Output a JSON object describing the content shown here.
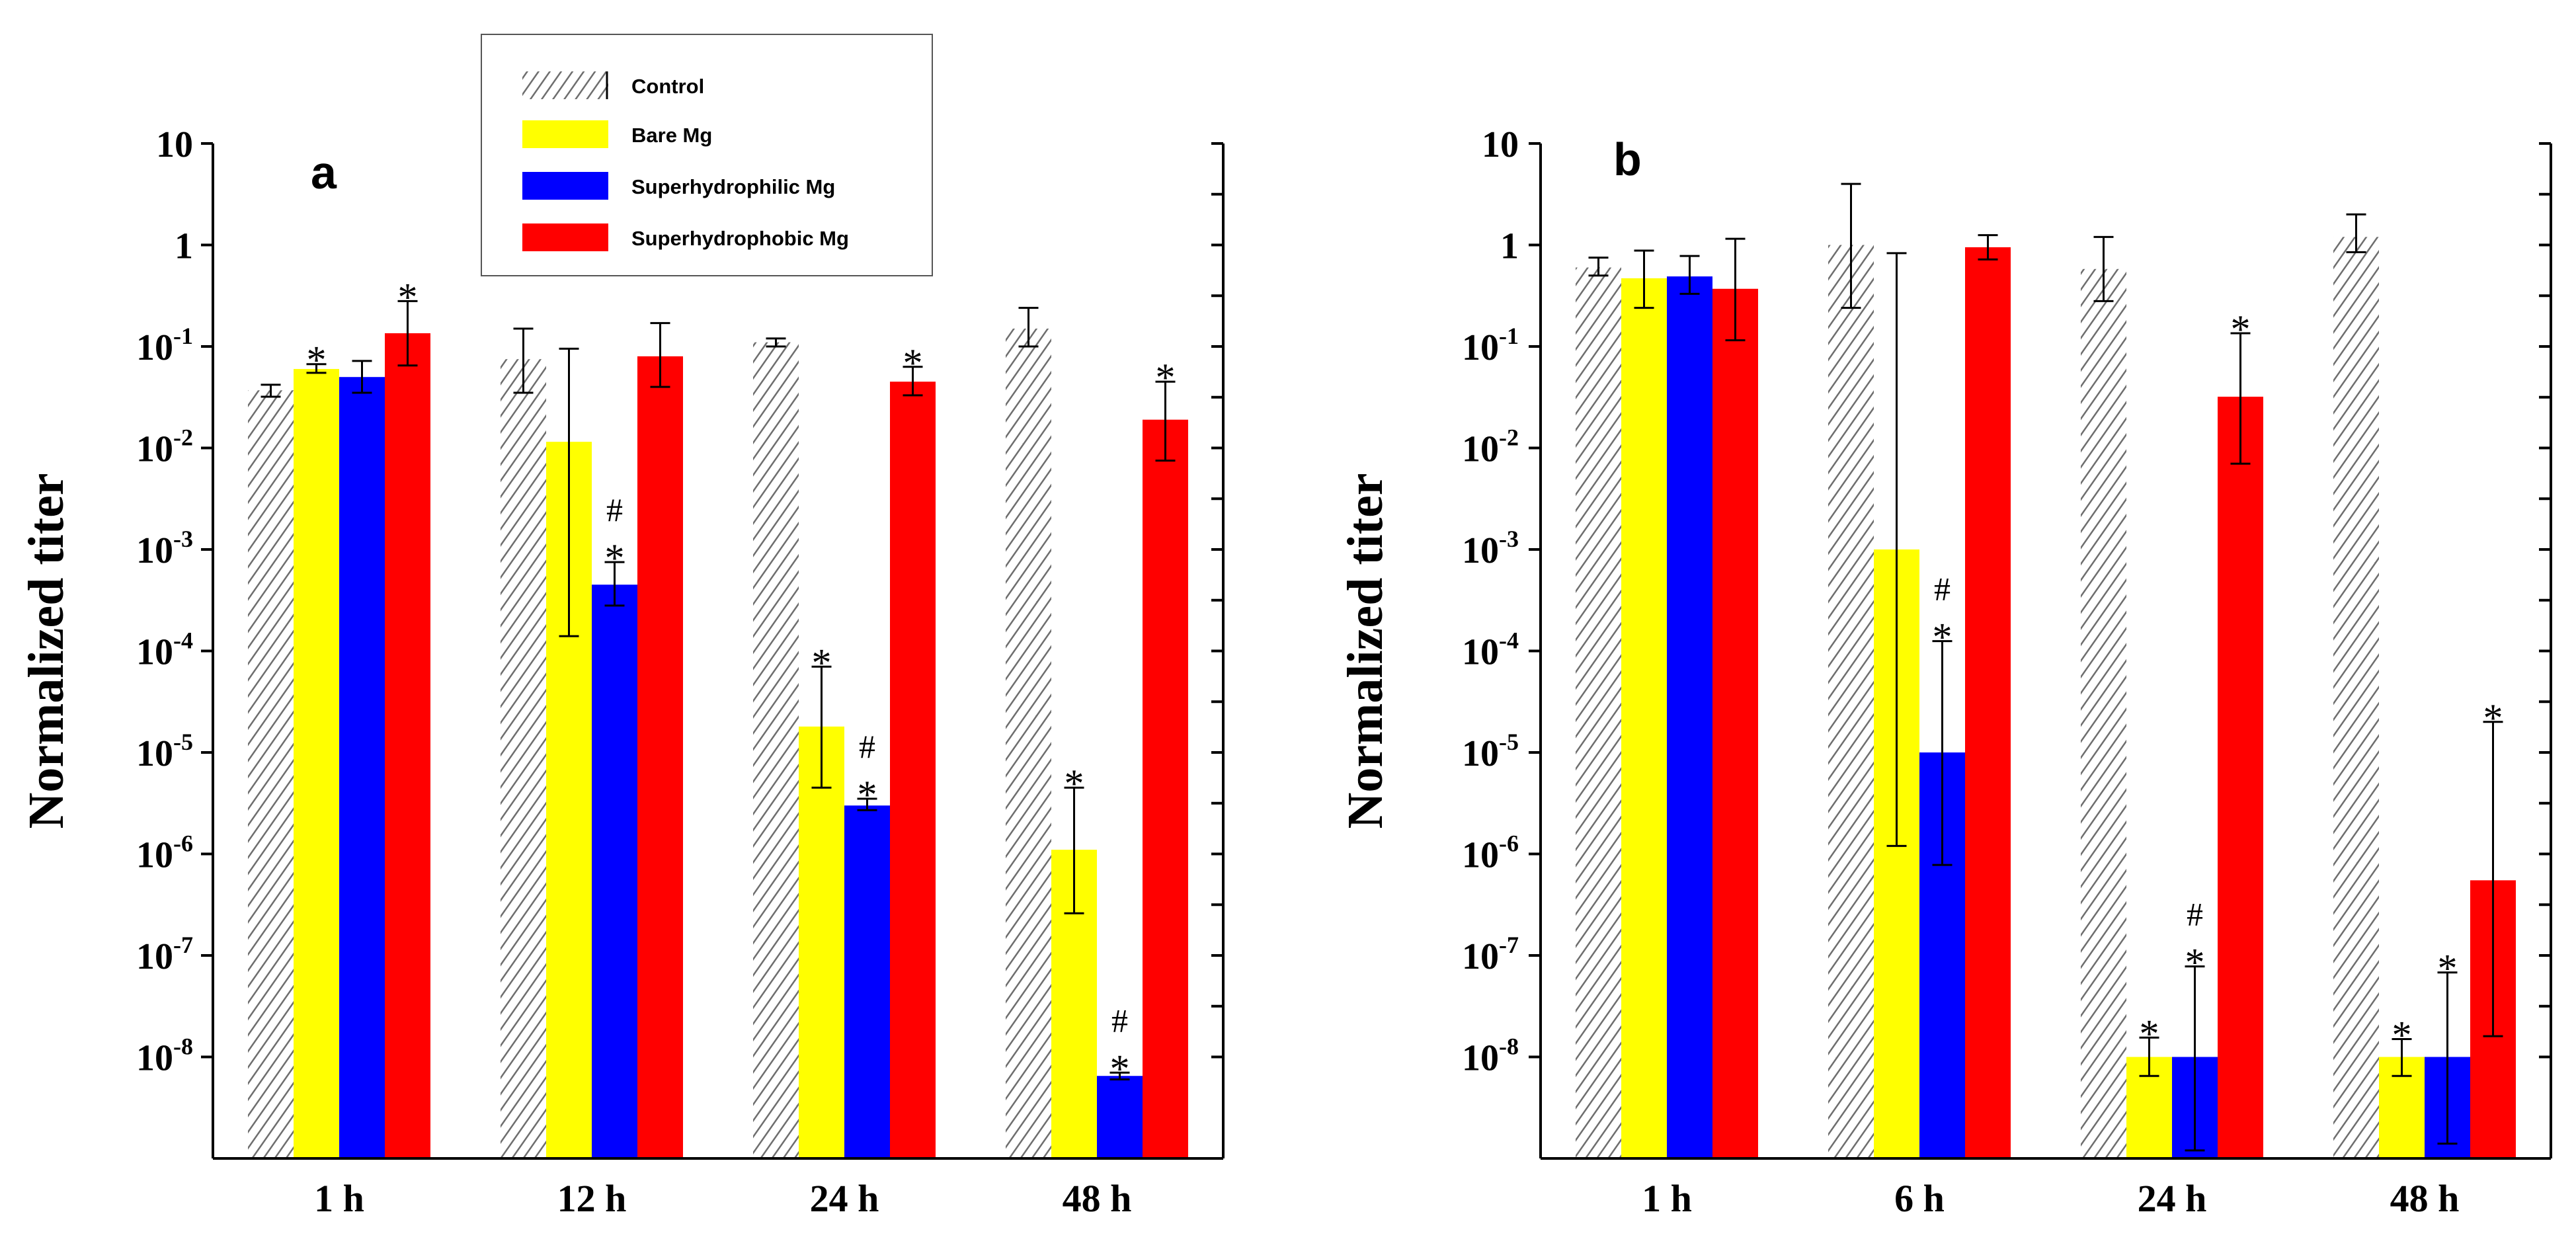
{
  "legend": {
    "items": [
      {
        "label": "Control",
        "fill": "hatch"
      },
      {
        "label": "Bare Mg",
        "fill": "#ffff00"
      },
      {
        "label": "Superhydrophilic Mg",
        "fill": "#0000ff"
      },
      {
        "label": "Superhydrophobic Mg",
        "fill": "#ff0000"
      }
    ]
  },
  "chart_data": [
    {
      "type": "bar",
      "panel": "a",
      "ylabel": "Normalized titer",
      "yscale": "log",
      "ylim": [
        1e-09,
        10
      ],
      "y_ticks": [
        {
          "base": "10",
          "exp": "-8"
        },
        {
          "base": "10",
          "exp": "-7"
        },
        {
          "base": "10",
          "exp": "-6"
        },
        {
          "base": "10",
          "exp": "-5"
        },
        {
          "base": "10",
          "exp": "-4"
        },
        {
          "base": "10",
          "exp": "-3"
        },
        {
          "base": "10",
          "exp": "-2"
        },
        {
          "base": "10",
          "exp": "-1"
        },
        {
          "base": "1",
          "exp": ""
        },
        {
          "base": "10",
          "exp": ""
        }
      ],
      "categories": [
        "1 h",
        "12 h",
        "24 h",
        "48 h"
      ],
      "series": [
        {
          "name": "Control",
          "values": [
            0.037,
            0.075,
            0.11,
            0.15
          ],
          "err_low": [
            0.032,
            0.035,
            0.1,
            0.1
          ],
          "err_high": [
            0.042,
            0.15,
            0.12,
            0.24
          ]
        },
        {
          "name": "Bare Mg",
          "values": [
            0.06,
            0.0115,
            1.8e-05,
            1.1e-06
          ],
          "err_low": [
            0.055,
            0.00014,
            4.5e-06,
            2.6e-07
          ],
          "err_high": [
            0.067,
            0.095,
            7e-05,
            4.5e-06
          ],
          "sig": [
            "*",
            "",
            "*",
            "*"
          ]
        },
        {
          "name": "Superhydrophilic Mg",
          "values": [
            0.05,
            0.00045,
            3e-06,
            6.5e-09
          ],
          "err_low": [
            0.035,
            0.00028,
            2.7e-06,
            6e-09
          ],
          "err_high": [
            0.072,
            0.00075,
            3.5e-06,
            7e-09
          ],
          "sig": [
            "",
            "#*",
            "#*",
            "#*"
          ]
        },
        {
          "name": "Superhydrophobic Mg",
          "values": [
            0.135,
            0.08,
            0.045,
            0.019
          ],
          "err_low": [
            0.065,
            0.04,
            0.033,
            0.0075
          ],
          "err_high": [
            0.28,
            0.17,
            0.063,
            0.045
          ],
          "sig": [
            "*",
            "",
            "*",
            "*"
          ]
        }
      ]
    },
    {
      "type": "bar",
      "panel": "b",
      "ylabel": "Normalized titer",
      "yscale": "log",
      "ylim": [
        1e-09,
        10
      ],
      "y_ticks": [
        {
          "base": "10",
          "exp": "-8"
        },
        {
          "base": "10",
          "exp": "-7"
        },
        {
          "base": "10",
          "exp": "-6"
        },
        {
          "base": "10",
          "exp": "-5"
        },
        {
          "base": "10",
          "exp": "-4"
        },
        {
          "base": "10",
          "exp": "-3"
        },
        {
          "base": "10",
          "exp": "-2"
        },
        {
          "base": "10",
          "exp": "-1"
        },
        {
          "base": "1",
          "exp": ""
        },
        {
          "base": "10",
          "exp": ""
        }
      ],
      "categories": [
        "1 h",
        "6 h",
        "24 h",
        "48 h"
      ],
      "series": [
        {
          "name": "Control",
          "values": [
            0.6,
            1.0,
            0.58,
            1.2
          ],
          "err_low": [
            0.5,
            0.24,
            0.28,
            0.85
          ],
          "err_high": [
            0.75,
            4.0,
            1.2,
            2.0
          ]
        },
        {
          "name": "Bare Mg",
          "values": [
            0.47,
            0.001,
            1e-08,
            1e-08
          ],
          "err_low": [
            0.24,
            1.2e-06,
            6.5e-09,
            6.5e-09
          ],
          "err_high": [
            0.88,
            0.83,
            1.55e-08,
            1.5e-08
          ],
          "sig": [
            "",
            "",
            "*",
            "*"
          ]
        },
        {
          "name": "Superhydrophilic Mg",
          "values": [
            0.49,
            1e-05,
            1e-08,
            1e-08
          ],
          "err_low": [
            0.33,
            7.8e-07,
            1.2e-09,
            1.4e-09
          ],
          "err_high": [
            0.78,
            0.000125,
            7.8e-08,
            6.8e-08
          ],
          "sig": [
            "",
            "#*",
            "#*",
            "*"
          ]
        },
        {
          "name": "Superhydrophobic Mg",
          "values": [
            0.37,
            0.95,
            0.032,
            5.5e-07
          ],
          "err_low": [
            0.115,
            0.72,
            0.007,
            1.6e-08
          ],
          "err_high": [
            1.15,
            1.25,
            0.135,
            2e-05
          ],
          "sig": [
            "",
            "",
            "*",
            "*"
          ]
        }
      ]
    }
  ]
}
